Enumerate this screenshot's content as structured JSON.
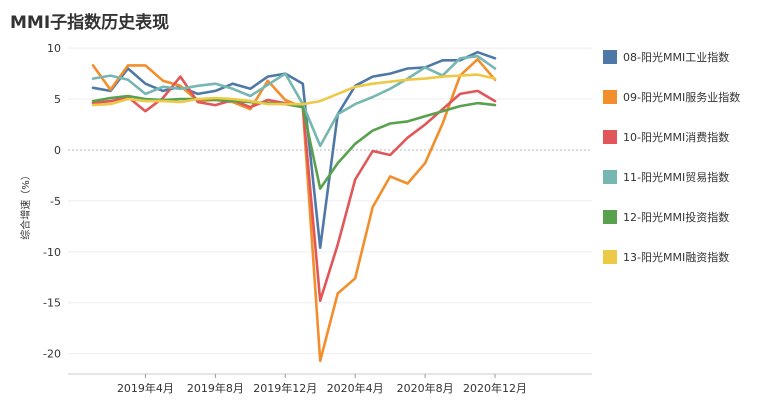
{
  "chart_data": {
    "type": "line",
    "title": "MMI子指数历史表现",
    "xlabel": "",
    "ylabel": "综合增速（%）",
    "ylim": [
      -22,
      10.5
    ],
    "yticks": [
      10,
      5,
      0,
      -5,
      -10,
      -15,
      -20
    ],
    "ytick_labels": [
      "10",
      "5",
      "0",
      "-5",
      "-10",
      "-15",
      "-20"
    ],
    "x": [
      "2019-01",
      "2019-02",
      "2019-03",
      "2019-04",
      "2019-05",
      "2019-06",
      "2019-07",
      "2019-08",
      "2019-09",
      "2019-10",
      "2019-11",
      "2019-12",
      "2020-01",
      "2020-02",
      "2020-03",
      "2020-04",
      "2020-05",
      "2020-06",
      "2020-07",
      "2020-08",
      "2020-09",
      "2020-10",
      "2020-11",
      "2020-12"
    ],
    "x_ticks": [
      {
        "x": "2019-04",
        "label": "2019年4月"
      },
      {
        "x": "2019-08",
        "label": "2019年8月"
      },
      {
        "x": "2019-12",
        "label": "2019年12月"
      },
      {
        "x": "2020-04",
        "label": "2020年4月"
      },
      {
        "x": "2020-08",
        "label": "2020年8月"
      },
      {
        "x": "2020-12",
        "label": "2020年12月"
      }
    ],
    "series": [
      {
        "name": "08-阳光MMI工业指数",
        "color": "#4e79a7",
        "values": [
          6.1,
          5.8,
          8.0,
          6.5,
          5.8,
          6.2,
          5.5,
          5.8,
          6.5,
          6.0,
          7.2,
          7.5,
          6.5,
          -9.6,
          3.5,
          6.3,
          7.2,
          7.5,
          8.0,
          8.1,
          8.8,
          8.8,
          9.6,
          9.0
        ]
      },
      {
        "name": "09-阳光MMI服务业指数",
        "color": "#f28e2b",
        "values": [
          8.3,
          5.9,
          8.3,
          8.3,
          6.8,
          6.3,
          4.8,
          4.9,
          4.7,
          4.0,
          6.8,
          4.9,
          4.2,
          -20.7,
          -14.1,
          -12.6,
          -5.6,
          -2.6,
          -3.3,
          -1.3,
          2.6,
          7.3,
          8.9,
          6.9
        ]
      },
      {
        "name": "10-阳光MMI消费指数",
        "color": "#e15759",
        "values": [
          4.6,
          4.8,
          5.2,
          3.8,
          5.1,
          7.2,
          4.7,
          4.4,
          4.9,
          4.2,
          4.9,
          4.6,
          4.3,
          -14.8,
          -9.3,
          -2.9,
          -0.1,
          -0.5,
          1.2,
          2.5,
          4.0,
          5.5,
          5.8,
          4.8
        ]
      },
      {
        "name": "11-阳光MMI贸易指数",
        "color": "#76b7b2",
        "values": [
          7.0,
          7.3,
          6.9,
          5.5,
          6.2,
          6.0,
          6.3,
          6.5,
          6.0,
          5.3,
          6.4,
          7.5,
          4.5,
          0.4,
          3.5,
          4.5,
          5.2,
          6.0,
          7.0,
          8.1,
          7.3,
          9.0,
          9.2,
          8.0
        ]
      },
      {
        "name": "12-阳光MMI投资指数",
        "color": "#59a14f",
        "values": [
          4.8,
          5.1,
          5.3,
          5.0,
          4.9,
          5.0,
          5.0,
          4.9,
          4.8,
          4.7,
          4.6,
          4.5,
          4.2,
          -3.8,
          -1.3,
          0.6,
          1.9,
          2.6,
          2.8,
          3.3,
          3.8,
          4.3,
          4.6,
          4.4
        ]
      },
      {
        "name": "13-阳光MMI融资指数",
        "color": "#edc948",
        "values": [
          4.4,
          4.5,
          5.0,
          4.8,
          4.8,
          4.7,
          5.0,
          5.1,
          5.0,
          4.8,
          4.5,
          4.5,
          4.5,
          4.8,
          5.5,
          6.2,
          6.5,
          6.7,
          6.9,
          7.0,
          7.2,
          7.3,
          7.4,
          7.0
        ]
      }
    ]
  }
}
